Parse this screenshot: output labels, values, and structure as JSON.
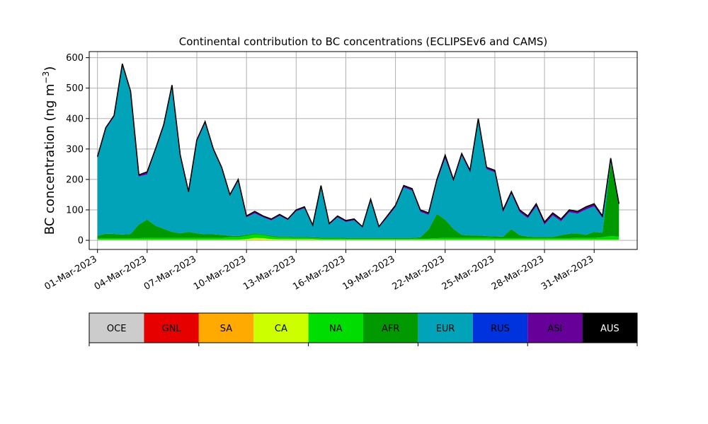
{
  "chart_data": {
    "type": "area",
    "title": "Continental contribution to BC concentrations (ECLIPSEv6 and CAMS)",
    "ylabel": "BC concentration (ng m",
    "ylabel_sup": "−3",
    "ylabel_close": ")",
    "xlabel": "",
    "ylim": [
      -30,
      620
    ],
    "xlim_days": [
      -0.5,
      32.6
    ],
    "grid": true,
    "yticks": [
      0,
      100,
      200,
      300,
      400,
      500,
      600
    ],
    "xticks": [
      "01-Mar-2023",
      "04-Mar-2023",
      "07-Mar-2023",
      "10-Mar-2023",
      "13-Mar-2023",
      "16-Mar-2023",
      "19-Mar-2023",
      "22-Mar-2023",
      "25-Mar-2023",
      "28-Mar-2023",
      "31-Mar-2023"
    ],
    "x_dates": [
      "01-Mar-2023",
      "01-Mar-2023 12:00",
      "02-Mar-2023",
      "02-Mar-2023 12:00",
      "03-Mar-2023",
      "03-Mar-2023 12:00",
      "04-Mar-2023",
      "04-Mar-2023 12:00",
      "05-Mar-2023",
      "05-Mar-2023 12:00",
      "06-Mar-2023",
      "06-Mar-2023 12:00",
      "07-Mar-2023",
      "07-Mar-2023 12:00",
      "08-Mar-2023",
      "08-Mar-2023 12:00",
      "09-Mar-2023",
      "09-Mar-2023 12:00",
      "10-Mar-2023",
      "10-Mar-2023 12:00",
      "11-Mar-2023",
      "11-Mar-2023 12:00",
      "12-Mar-2023",
      "12-Mar-2023 12:00",
      "13-Mar-2023",
      "13-Mar-2023 12:00",
      "14-Mar-2023",
      "14-Mar-2023 12:00",
      "15-Mar-2023",
      "15-Mar-2023 12:00",
      "16-Mar-2023",
      "16-Mar-2023 12:00",
      "17-Mar-2023",
      "17-Mar-2023 12:00",
      "18-Mar-2023",
      "18-Mar-2023 12:00",
      "19-Mar-2023",
      "19-Mar-2023 12:00",
      "20-Mar-2023",
      "20-Mar-2023 12:00",
      "21-Mar-2023",
      "21-Mar-2023 12:00",
      "22-Mar-2023",
      "22-Mar-2023 12:00",
      "23-Mar-2023",
      "23-Mar-2023 12:00",
      "24-Mar-2023",
      "24-Mar-2023 12:00",
      "25-Mar-2023",
      "25-Mar-2023 12:00",
      "26-Mar-2023",
      "26-Mar-2023 12:00",
      "27-Mar-2023",
      "27-Mar-2023 12:00",
      "28-Mar-2023",
      "28-Mar-2023 12:00",
      "29-Mar-2023",
      "29-Mar-2023 12:00",
      "30-Mar-2023",
      "30-Mar-2023 12:00",
      "31-Mar-2023",
      "31-Mar-2023 12:00",
      "01-Apr-2023",
      "01-Apr-2023 12:00"
    ],
    "total": [
      275,
      370,
      410,
      580,
      490,
      215,
      225,
      300,
      380,
      510,
      280,
      160,
      330,
      390,
      300,
      240,
      150,
      200,
      80,
      95,
      80,
      70,
      85,
      70,
      100,
      110,
      50,
      180,
      55,
      80,
      65,
      70,
      45,
      135,
      45,
      80,
      115,
      180,
      170,
      100,
      90,
      200,
      280,
      200,
      285,
      230,
      400,
      240,
      230,
      100,
      160,
      100,
      80,
      120,
      60,
      90,
      70,
      100,
      95,
      110,
      120,
      80,
      270,
      120
    ],
    "series": [
      {
        "name": "OCE",
        "color": "#cccccc",
        "values": [
          1,
          1,
          1,
          1,
          1,
          1,
          1,
          1,
          1,
          1,
          1,
          1,
          1,
          1,
          1,
          1,
          1,
          1,
          1,
          1,
          1,
          1,
          1,
          1,
          1,
          1,
          1,
          1,
          1,
          1,
          1,
          1,
          1,
          1,
          1,
          1,
          1,
          1,
          1,
          1,
          1,
          1,
          1,
          1,
          1,
          1,
          1,
          1,
          1,
          1,
          1,
          1,
          1,
          1,
          1,
          1,
          1,
          1,
          1,
          1,
          1,
          1,
          1,
          1
        ]
      },
      {
        "name": "GNL",
        "color": "#e60000",
        "values": [
          0,
          0,
          0,
          0,
          0,
          0,
          0,
          0,
          0,
          0,
          0,
          0,
          0,
          0,
          0,
          0,
          0,
          0,
          0,
          0,
          0,
          0,
          0,
          0,
          0,
          0,
          0,
          0,
          0,
          0,
          0,
          0,
          0,
          0,
          0,
          0,
          0,
          0,
          0,
          0,
          0,
          0,
          0,
          0,
          0,
          0,
          0,
          0,
          0,
          0,
          0,
          0,
          0,
          0,
          0,
          0,
          0,
          0,
          0,
          0,
          0,
          0,
          0,
          0
        ]
      },
      {
        "name": "SA",
        "color": "#ffaa00",
        "values": [
          0,
          0,
          0,
          0,
          0,
          0,
          0,
          0,
          0,
          0,
          0,
          0,
          0,
          0,
          0,
          0,
          0,
          0,
          0,
          1,
          1,
          0,
          0,
          0,
          0,
          0,
          0,
          0,
          0,
          0,
          0,
          0,
          0,
          0,
          0,
          0,
          0,
          0,
          0,
          0,
          0,
          0,
          0,
          0,
          0,
          0,
          0,
          0,
          0,
          0,
          0,
          0,
          0,
          0,
          0,
          0,
          0,
          0,
          0,
          0,
          0,
          0,
          0,
          0
        ]
      },
      {
        "name": "CA",
        "color": "#ccff00",
        "values": [
          1,
          1,
          1,
          1,
          1,
          1,
          1,
          1,
          1,
          1,
          1,
          1,
          1,
          1,
          1,
          1,
          1,
          1,
          3,
          6,
          5,
          3,
          2,
          2,
          2,
          2,
          2,
          1,
          1,
          1,
          1,
          1,
          1,
          1,
          1,
          1,
          1,
          1,
          1,
          1,
          1,
          1,
          1,
          1,
          1,
          1,
          1,
          1,
          1,
          1,
          1,
          1,
          1,
          1,
          1,
          1,
          1,
          1,
          1,
          1,
          1,
          1,
          1,
          1
        ]
      },
      {
        "name": "NA",
        "color": "#00dd00",
        "values": [
          5,
          5,
          5,
          5,
          5,
          5,
          6,
          6,
          6,
          6,
          6,
          6,
          6,
          6,
          6,
          6,
          8,
          8,
          10,
          12,
          10,
          8,
          6,
          6,
          5,
          5,
          4,
          4,
          4,
          4,
          3,
          3,
          3,
          3,
          3,
          3,
          3,
          3,
          3,
          4,
          4,
          5,
          6,
          6,
          6,
          6,
          6,
          6,
          5,
          5,
          5,
          5,
          5,
          5,
          5,
          5,
          5,
          5,
          6,
          6,
          6,
          8,
          12,
          10
        ]
      },
      {
        "name": "AFR",
        "color": "#009900",
        "values": [
          8,
          15,
          14,
          12,
          14,
          45,
          60,
          40,
          30,
          20,
          15,
          20,
          15,
          12,
          12,
          10,
          5,
          4,
          4,
          3,
          3,
          3,
          3,
          3,
          3,
          3,
          3,
          3,
          3,
          3,
          3,
          3,
          3,
          3,
          3,
          3,
          3,
          3,
          3,
          4,
          30,
          80,
          60,
          30,
          10,
          8,
          8,
          6,
          6,
          5,
          30,
          10,
          5,
          4,
          4,
          4,
          10,
          15,
          15,
          10,
          20,
          15,
          240,
          110
        ]
      },
      {
        "name": "EUR",
        "color": "#00a3b8",
        "values": [
          255,
          343,
          384,
          555,
          464,
          157,
          148,
          246,
          335,
          475,
          251,
          126,
          301,
          364,
          275,
          217,
          130,
          180,
          57,
          65,
          55,
          50,
          68,
          54,
          84,
          94,
          36,
          166,
          42,
          66,
          52,
          57,
          34,
          121,
          34,
          66,
          101,
          165,
          155,
          83,
          47,
          105,
          200,
          155,
          260,
          207,
          377,
          219,
          210,
          80,
          115,
          75,
          60,
          100,
          40,
          70,
          45,
          70,
          64,
          83,
          83,
          48,
          5,
          0
        ]
      },
      {
        "name": "RUS",
        "color": "#0033dd",
        "values": [
          1,
          1,
          1,
          1,
          1,
          1,
          1,
          1,
          1,
          1,
          1,
          1,
          1,
          1,
          1,
          1,
          1,
          1,
          1,
          1,
          1,
          1,
          1,
          1,
          1,
          1,
          1,
          1,
          1,
          1,
          1,
          1,
          1,
          1,
          1,
          1,
          1,
          1,
          1,
          1,
          1,
          1,
          1,
          1,
          1,
          1,
          1,
          1,
          1,
          1,
          1,
          1,
          1,
          1,
          1,
          1,
          1,
          1,
          1,
          1,
          1,
          1,
          1,
          1
        ]
      },
      {
        "name": "ASI",
        "color": "#660099",
        "values": [
          4,
          4,
          4,
          5,
          4,
          5,
          8,
          5,
          5,
          5,
          5,
          5,
          5,
          5,
          4,
          4,
          4,
          5,
          4,
          6,
          4,
          3,
          4,
          3,
          4,
          4,
          3,
          4,
          3,
          4,
          4,
          4,
          3,
          5,
          2,
          3,
          5,
          6,
          6,
          6,
          6,
          6,
          8,
          6,
          6,
          6,
          6,
          6,
          6,
          7,
          7,
          6,
          6,
          7,
          7,
          7,
          6,
          6,
          7,
          7,
          7,
          5,
          10,
          5
        ]
      },
      {
        "name": "AUS",
        "color": "#000000",
        "values": [
          0,
          0,
          0,
          0,
          0,
          0,
          0,
          0,
          0,
          0,
          0,
          0,
          0,
          0,
          0,
          0,
          0,
          0,
          0,
          0,
          0,
          0,
          0,
          0,
          0,
          0,
          0,
          0,
          0,
          0,
          0,
          0,
          0,
          0,
          0,
          0,
          0,
          0,
          0,
          0,
          0,
          0,
          0,
          0,
          0,
          0,
          0,
          0,
          0,
          0,
          0,
          0,
          0,
          0,
          0,
          0,
          0,
          0,
          0,
          0,
          0,
          0,
          0,
          0
        ]
      }
    ],
    "legend": {
      "placement": "bottom colorbar",
      "labels": [
        "OCE",
        "GNL",
        "SA",
        "CA",
        "NA",
        "AFR",
        "EUR",
        "RUS",
        "ASI",
        "AUS"
      ],
      "colors": [
        "#cccccc",
        "#e60000",
        "#ffaa00",
        "#ccff00",
        "#00dd00",
        "#009900",
        "#00a3b8",
        "#0033dd",
        "#660099",
        "#000000"
      ],
      "label_colors": [
        "#000000",
        "#000000",
        "#000000",
        "#000000",
        "#000000",
        "#000000",
        "#000000",
        "#000000",
        "#000000",
        "#ffffff"
      ]
    }
  }
}
